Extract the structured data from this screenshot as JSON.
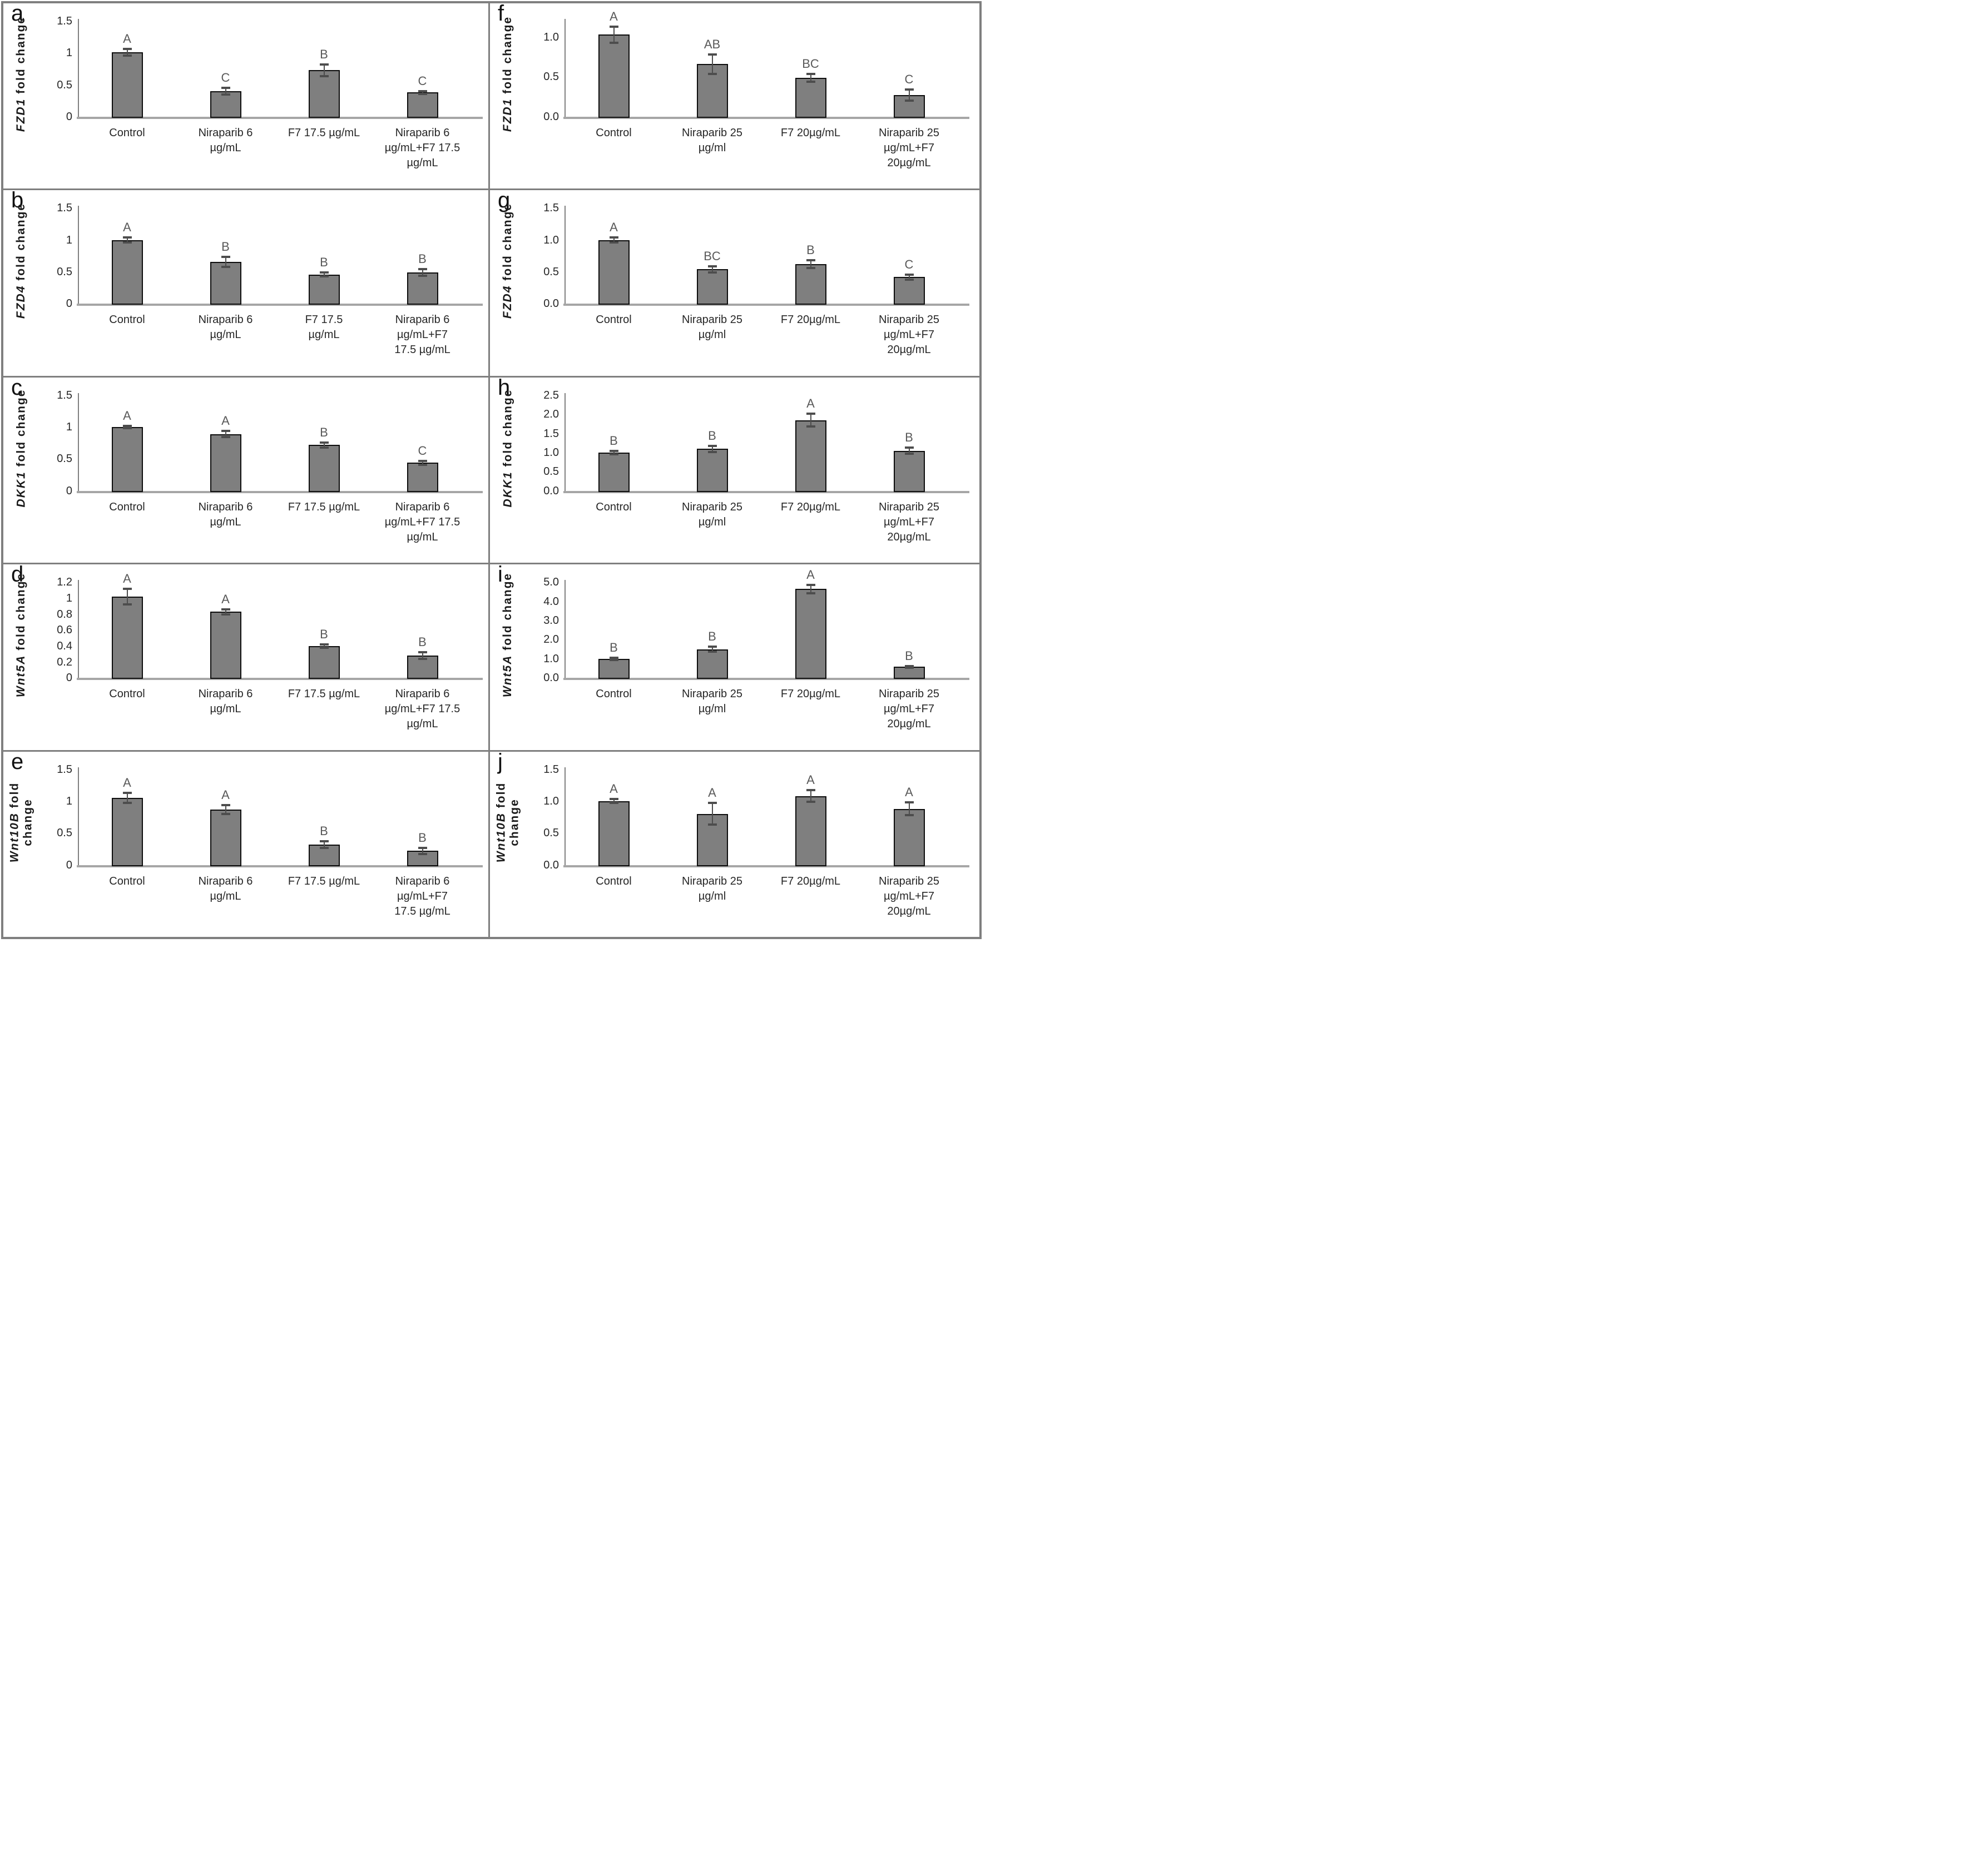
{
  "style": {
    "bar_fill": "#7f7f7f",
    "bar_border": "#0d0d0d",
    "error_color": "#4d4d4d",
    "axis_color": "#808080",
    "baseline_color": "#a6a6a6",
    "divider_color": "#7f7f7f",
    "sig_letter_color": "#595959",
    "text_color": "#262626"
  },
  "chart_data": [
    {
      "panel": "a",
      "type": "bar",
      "gene": "FZD1",
      "ylabel_suffix_lines": [
        "fold change"
      ],
      "ylim": [
        0,
        1.5
      ],
      "yticks": [
        {
          "label": "1.5",
          "value": 1.5
        },
        {
          "label": "1",
          "value": 1
        },
        {
          "label": "0.5",
          "value": 0.5
        },
        {
          "label": "0",
          "value": 0
        }
      ],
      "categories": [
        [
          "Control"
        ],
        [
          "Niraparib 6",
          "µg/mL"
        ],
        [
          "F7 17.5 µg/mL"
        ],
        [
          "Niraparib 6",
          "µg/mL+F7 17.5",
          "µg/mL"
        ]
      ],
      "values": [
        1.01,
        0.4,
        0.73,
        0.38
      ],
      "errors": [
        0.05,
        0.05,
        0.09,
        0.02
      ],
      "sig_letters": [
        "A",
        "C",
        "B",
        "C"
      ]
    },
    {
      "panel": "f",
      "type": "bar",
      "gene": "FZD1",
      "ylabel_suffix_lines": [
        "fold change"
      ],
      "ylim": [
        0,
        1.2
      ],
      "yticks": [
        {
          "label": "1.0",
          "value": 1.0
        },
        {
          "label": "0.5",
          "value": 0.5
        },
        {
          "label": "0.0",
          "value": 0
        }
      ],
      "categories": [
        [
          "Control"
        ],
        [
          "Niraparib 25",
          "µg/ml"
        ],
        [
          "F7 20µg/mL"
        ],
        [
          "Niraparib 25",
          "µg/mL+F7",
          "20µg/mL"
        ]
      ],
      "values": [
        1.03,
        0.66,
        0.49,
        0.27
      ],
      "errors": [
        0.1,
        0.12,
        0.05,
        0.07
      ],
      "sig_letters": [
        "A",
        "AB",
        "BC",
        "C"
      ]
    },
    {
      "panel": "b",
      "type": "bar",
      "gene": "FZD4",
      "ylabel_suffix_lines": [
        "fold change"
      ],
      "ylim": [
        0,
        1.5
      ],
      "yticks": [
        {
          "label": "1.5",
          "value": 1.5
        },
        {
          "label": "1",
          "value": 1
        },
        {
          "label": "0.5",
          "value": 0.5
        },
        {
          "label": "0",
          "value": 0
        }
      ],
      "categories": [
        [
          "Control"
        ],
        [
          "Niraparib 6",
          "µg/mL"
        ],
        [
          "F7 17.5",
          "µg/mL"
        ],
        [
          "Niraparib 6",
          "µg/mL+F7",
          "17.5 µg/mL"
        ]
      ],
      "values": [
        1.0,
        0.66,
        0.46,
        0.49
      ],
      "errors": [
        0.04,
        0.08,
        0.03,
        0.05
      ],
      "sig_letters": [
        "A",
        "B",
        "B",
        "B"
      ]
    },
    {
      "panel": "g",
      "type": "bar",
      "gene": "FZD4",
      "ylabel_suffix_lines": [
        "fold change"
      ],
      "ylim": [
        0,
        1.5
      ],
      "yticks": [
        {
          "label": "1.5",
          "value": 1.5
        },
        {
          "label": "1.0",
          "value": 1.0
        },
        {
          "label": "0.5",
          "value": 0.5
        },
        {
          "label": "0.0",
          "value": 0
        }
      ],
      "categories": [
        [
          "Control"
        ],
        [
          "Niraparib 25",
          "µg/ml"
        ],
        [
          "F7 20µg/mL"
        ],
        [
          "Niraparib 25",
          "µg/mL+F7",
          "20µg/mL"
        ]
      ],
      "values": [
        1.0,
        0.54,
        0.62,
        0.42
      ],
      "errors": [
        0.04,
        0.05,
        0.06,
        0.04
      ],
      "sig_letters": [
        "A",
        "BC",
        "B",
        "C"
      ]
    },
    {
      "panel": "c",
      "type": "bar",
      "gene": "DKK1",
      "ylabel_suffix_lines": [
        "fold change"
      ],
      "ylim": [
        0,
        1.5
      ],
      "yticks": [
        {
          "label": "1.5",
          "value": 1.5
        },
        {
          "label": "1",
          "value": 1
        },
        {
          "label": "0.5",
          "value": 0.5
        },
        {
          "label": "0",
          "value": 0
        }
      ],
      "categories": [
        [
          "Control"
        ],
        [
          "Niraparib 6",
          "µg/mL"
        ],
        [
          "F7 17.5 µg/mL"
        ],
        [
          "Niraparib 6",
          "µg/mL+F7 17.5",
          "µg/mL"
        ]
      ],
      "values": [
        1.0,
        0.89,
        0.72,
        0.44
      ],
      "errors": [
        0.02,
        0.05,
        0.04,
        0.03
      ],
      "sig_letters": [
        "A",
        "A",
        "B",
        "C"
      ]
    },
    {
      "panel": "h",
      "type": "bar",
      "gene": "DKK1",
      "ylabel_suffix_lines": [
        "fold change"
      ],
      "ylim": [
        0,
        2.5
      ],
      "yticks": [
        {
          "label": "2.5",
          "value": 2.5
        },
        {
          "label": "2.0",
          "value": 2.0
        },
        {
          "label": "1.5",
          "value": 1.5
        },
        {
          "label": "1.0",
          "value": 1.0
        },
        {
          "label": "0.5",
          "value": 0.5
        },
        {
          "label": "0.0",
          "value": 0
        }
      ],
      "categories": [
        [
          "Control"
        ],
        [
          "Niraparib 25",
          "µg/ml"
        ],
        [
          "F7 20µg/mL"
        ],
        [
          "Niraparib 25",
          "µg/mL+F7",
          "20µg/mL"
        ]
      ],
      "values": [
        1.0,
        1.1,
        1.85,
        1.05
      ],
      "errors": [
        0.04,
        0.08,
        0.17,
        0.08
      ],
      "sig_letters": [
        "B",
        "B",
        "A",
        "B"
      ]
    },
    {
      "panel": "d",
      "type": "bar",
      "gene": "Wnt5A",
      "ylabel_suffix_lines": [
        "fold change"
      ],
      "ylim": [
        0,
        1.2
      ],
      "yticks": [
        {
          "label": "1.2",
          "value": 1.2
        },
        {
          "label": "1",
          "value": 1.0
        },
        {
          "label": "0.8",
          "value": 0.8
        },
        {
          "label": "0.6",
          "value": 0.6
        },
        {
          "label": "0.4",
          "value": 0.4
        },
        {
          "label": "0.2",
          "value": 0.2
        },
        {
          "label": "0",
          "value": 0
        }
      ],
      "categories": [
        [
          "Control"
        ],
        [
          "Niraparib 6",
          "µg/mL"
        ],
        [
          "F7 17.5 µg/mL"
        ],
        [
          "Niraparib 6",
          "µg/mL+F7 17.5",
          "µg/mL"
        ]
      ],
      "values": [
        1.02,
        0.83,
        0.4,
        0.28
      ],
      "errors": [
        0.1,
        0.03,
        0.02,
        0.04
      ],
      "sig_letters": [
        "A",
        "A",
        "B",
        "B"
      ]
    },
    {
      "panel": "i",
      "type": "bar",
      "gene": "Wnt5A",
      "ylabel_suffix_lines": [
        "fold change"
      ],
      "ylim": [
        0,
        5.0
      ],
      "yticks": [
        {
          "label": "5.0",
          "value": 5.0
        },
        {
          "label": "4.0",
          "value": 4.0
        },
        {
          "label": "3.0",
          "value": 3.0
        },
        {
          "label": "2.0",
          "value": 2.0
        },
        {
          "label": "1.0",
          "value": 1.0
        },
        {
          "label": "0.0",
          "value": 0
        }
      ],
      "categories": [
        [
          "Control"
        ],
        [
          "Niraparib 25",
          "µg/ml"
        ],
        [
          "F7 20µg/mL"
        ],
        [
          "Niraparib 25",
          "µg/mL+F7",
          "20µg/mL"
        ]
      ],
      "values": [
        1.0,
        1.5,
        4.65,
        0.58
      ],
      "errors": [
        0.06,
        0.13,
        0.22,
        0.05
      ],
      "sig_letters": [
        "B",
        "B",
        "A",
        "B"
      ]
    },
    {
      "panel": "e",
      "type": "bar",
      "gene": "Wnt10B",
      "ylabel_suffix_lines": [
        "fold",
        "change"
      ],
      "ylim": [
        0,
        1.5
      ],
      "yticks": [
        {
          "label": "1.5",
          "value": 1.5
        },
        {
          "label": "1",
          "value": 1
        },
        {
          "label": "0.5",
          "value": 0.5
        },
        {
          "label": "0",
          "value": 0
        }
      ],
      "categories": [
        [
          "Control"
        ],
        [
          "Niraparib 6",
          "µg/mL"
        ],
        [
          "F7 17.5 µg/mL"
        ],
        [
          "Niraparib 6",
          "µg/mL+F7",
          "17.5 µg/mL"
        ]
      ],
      "values": [
        1.05,
        0.87,
        0.32,
        0.22
      ],
      "errors": [
        0.08,
        0.07,
        0.05,
        0.05
      ],
      "sig_letters": [
        "A",
        "A",
        "B",
        "B"
      ]
    },
    {
      "panel": "j",
      "type": "bar",
      "gene": "Wnt10B",
      "ylabel_suffix_lines": [
        "fold",
        "change"
      ],
      "ylim": [
        0,
        1.5
      ],
      "yticks": [
        {
          "label": "1.5",
          "value": 1.5
        },
        {
          "label": "1.0",
          "value": 1.0
        },
        {
          "label": "0.5",
          "value": 0.5
        },
        {
          "label": "0.0",
          "value": 0
        }
      ],
      "categories": [
        [
          "Control"
        ],
        [
          "Niraparib 25",
          "µg/ml"
        ],
        [
          "F7 20µg/mL"
        ],
        [
          "Niraparib 25",
          "µg/mL+F7",
          "20µg/mL"
        ]
      ],
      "values": [
        1.0,
        0.8,
        1.08,
        0.88
      ],
      "errors": [
        0.03,
        0.17,
        0.09,
        0.1
      ],
      "sig_letters": [
        "A",
        "A",
        "A",
        "A"
      ]
    }
  ]
}
